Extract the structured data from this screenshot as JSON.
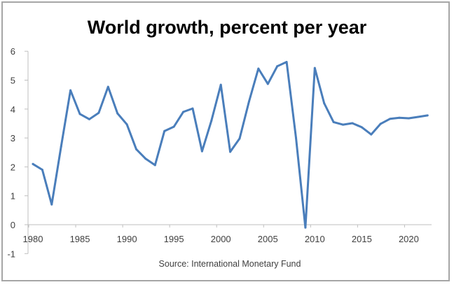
{
  "chart_data": {
    "type": "line",
    "title": "World growth, percent per year",
    "source": "Source: International Monetary Fund",
    "xlabel": "",
    "ylabel": "",
    "ylim": [
      -1,
      6
    ],
    "yticks": [
      "-1",
      "0",
      "1",
      "2",
      "3",
      "4",
      "5",
      "6"
    ],
    "xticks": [
      "1980",
      "1985",
      "1990",
      "1995",
      "2000",
      "2005",
      "2010",
      "2015",
      "2020"
    ],
    "grid": false,
    "legend": "none",
    "line_color": "#4a7ebb",
    "series": [
      {
        "name": "World growth",
        "x": [
          1980,
          1981,
          1982,
          1983,
          1984,
          1985,
          1986,
          1987,
          1988,
          1989,
          1990,
          1991,
          1992,
          1993,
          1994,
          1995,
          1996,
          1997,
          1998,
          1999,
          2000,
          2001,
          2002,
          2003,
          2004,
          2005,
          2006,
          2007,
          2008,
          2009,
          2010,
          2011,
          2012,
          2013,
          2014,
          2015,
          2016,
          2017,
          2018,
          2019,
          2020,
          2021,
          2022
        ],
        "values": [
          2.1,
          1.9,
          0.7,
          2.7,
          4.65,
          3.83,
          3.65,
          3.87,
          4.77,
          3.85,
          3.47,
          2.61,
          2.28,
          2.06,
          3.24,
          3.39,
          3.9,
          4.02,
          2.54,
          3.6,
          4.84,
          2.52,
          2.98,
          4.26,
          5.4,
          4.87,
          5.48,
          5.63,
          3.0,
          -0.1,
          5.42,
          4.2,
          3.55,
          3.46,
          3.51,
          3.37,
          3.12,
          3.49,
          3.66,
          3.7,
          3.68,
          3.73,
          3.78
        ]
      }
    ]
  }
}
